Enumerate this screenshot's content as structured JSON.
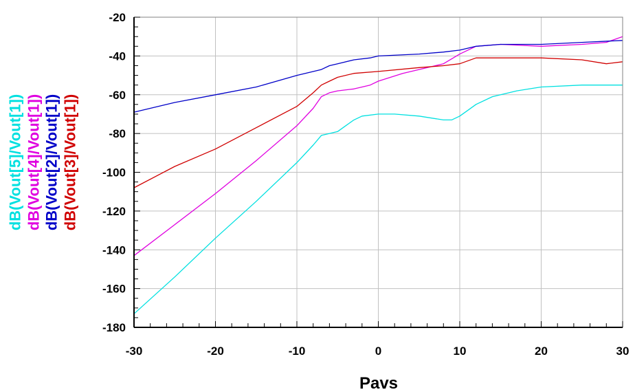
{
  "chart_data": {
    "type": "line",
    "title": "",
    "xlabel": "Pavs",
    "ylabel": "",
    "xlim": [
      -30,
      30
    ],
    "ylim": [
      -180,
      -20
    ],
    "x_ticks": [
      -30,
      -20,
      -10,
      0,
      10,
      20,
      30
    ],
    "y_ticks": [
      -20,
      -40,
      -60,
      -80,
      -100,
      -120,
      -140,
      -160,
      -180
    ],
    "grid": true,
    "legend_placement": "left-vertical",
    "series": [
      {
        "name": "dB(Vout[5]/Vout[1])",
        "color": "#00e0e0",
        "points": [
          [
            -30,
            -173
          ],
          [
            -25,
            -154
          ],
          [
            -20,
            -134
          ],
          [
            -15,
            -115
          ],
          [
            -10,
            -95
          ],
          [
            -8,
            -86
          ],
          [
            -7,
            -81
          ],
          [
            -6,
            -80
          ],
          [
            -5,
            -79
          ],
          [
            -4,
            -76
          ],
          [
            -3,
            -73
          ],
          [
            -2,
            -71
          ],
          [
            0,
            -70
          ],
          [
            2,
            -70
          ],
          [
            5,
            -71
          ],
          [
            8,
            -73
          ],
          [
            9,
            -73
          ],
          [
            10,
            -71
          ],
          [
            11,
            -68
          ],
          [
            12,
            -65
          ],
          [
            14,
            -61
          ],
          [
            17,
            -58
          ],
          [
            20,
            -56
          ],
          [
            25,
            -55
          ],
          [
            30,
            -55
          ]
        ]
      },
      {
        "name": "dB(Vout[4]/Vout[1])",
        "color": "#e000e0",
        "points": [
          [
            -30,
            -143
          ],
          [
            -25,
            -127
          ],
          [
            -20,
            -111
          ],
          [
            -15,
            -94
          ],
          [
            -10,
            -76
          ],
          [
            -8,
            -67
          ],
          [
            -7,
            -61
          ],
          [
            -6,
            -59
          ],
          [
            -5,
            -58
          ],
          [
            -3,
            -57
          ],
          [
            -1,
            -55
          ],
          [
            0,
            -53
          ],
          [
            3,
            -49
          ],
          [
            5,
            -47
          ],
          [
            8,
            -44
          ],
          [
            10,
            -39
          ],
          [
            12,
            -35
          ],
          [
            15,
            -34
          ],
          [
            20,
            -35
          ],
          [
            25,
            -34
          ],
          [
            28,
            -33
          ],
          [
            30,
            -30
          ]
        ]
      },
      {
        "name": "dB(Vout[2]/Vout[1])",
        "color": "#0000c8",
        "points": [
          [
            -30,
            -69
          ],
          [
            -25,
            -64
          ],
          [
            -20,
            -60
          ],
          [
            -15,
            -56
          ],
          [
            -10,
            -50
          ],
          [
            -7,
            -47
          ],
          [
            -6,
            -45
          ],
          [
            -5,
            -44
          ],
          [
            -3,
            -42
          ],
          [
            -1,
            -41
          ],
          [
            0,
            -40
          ],
          [
            5,
            -39
          ],
          [
            8,
            -38
          ],
          [
            10,
            -37
          ],
          [
            12,
            -35
          ],
          [
            15,
            -34
          ],
          [
            20,
            -34
          ],
          [
            25,
            -33
          ],
          [
            30,
            -32
          ]
        ]
      },
      {
        "name": "dB(Vout[3]/Vout[1])",
        "color": "#d00000",
        "points": [
          [
            -30,
            -108
          ],
          [
            -25,
            -97
          ],
          [
            -20,
            -88
          ],
          [
            -15,
            -77
          ],
          [
            -10,
            -66
          ],
          [
            -8,
            -59
          ],
          [
            -7,
            -55
          ],
          [
            -6,
            -53
          ],
          [
            -5,
            -51
          ],
          [
            -3,
            -49
          ],
          [
            0,
            -48
          ],
          [
            5,
            -46
          ],
          [
            8,
            -45
          ],
          [
            10,
            -44
          ],
          [
            12,
            -41
          ],
          [
            15,
            -41
          ],
          [
            20,
            -41
          ],
          [
            25,
            -42
          ],
          [
            28,
            -44
          ],
          [
            30,
            -43
          ]
        ]
      }
    ]
  }
}
